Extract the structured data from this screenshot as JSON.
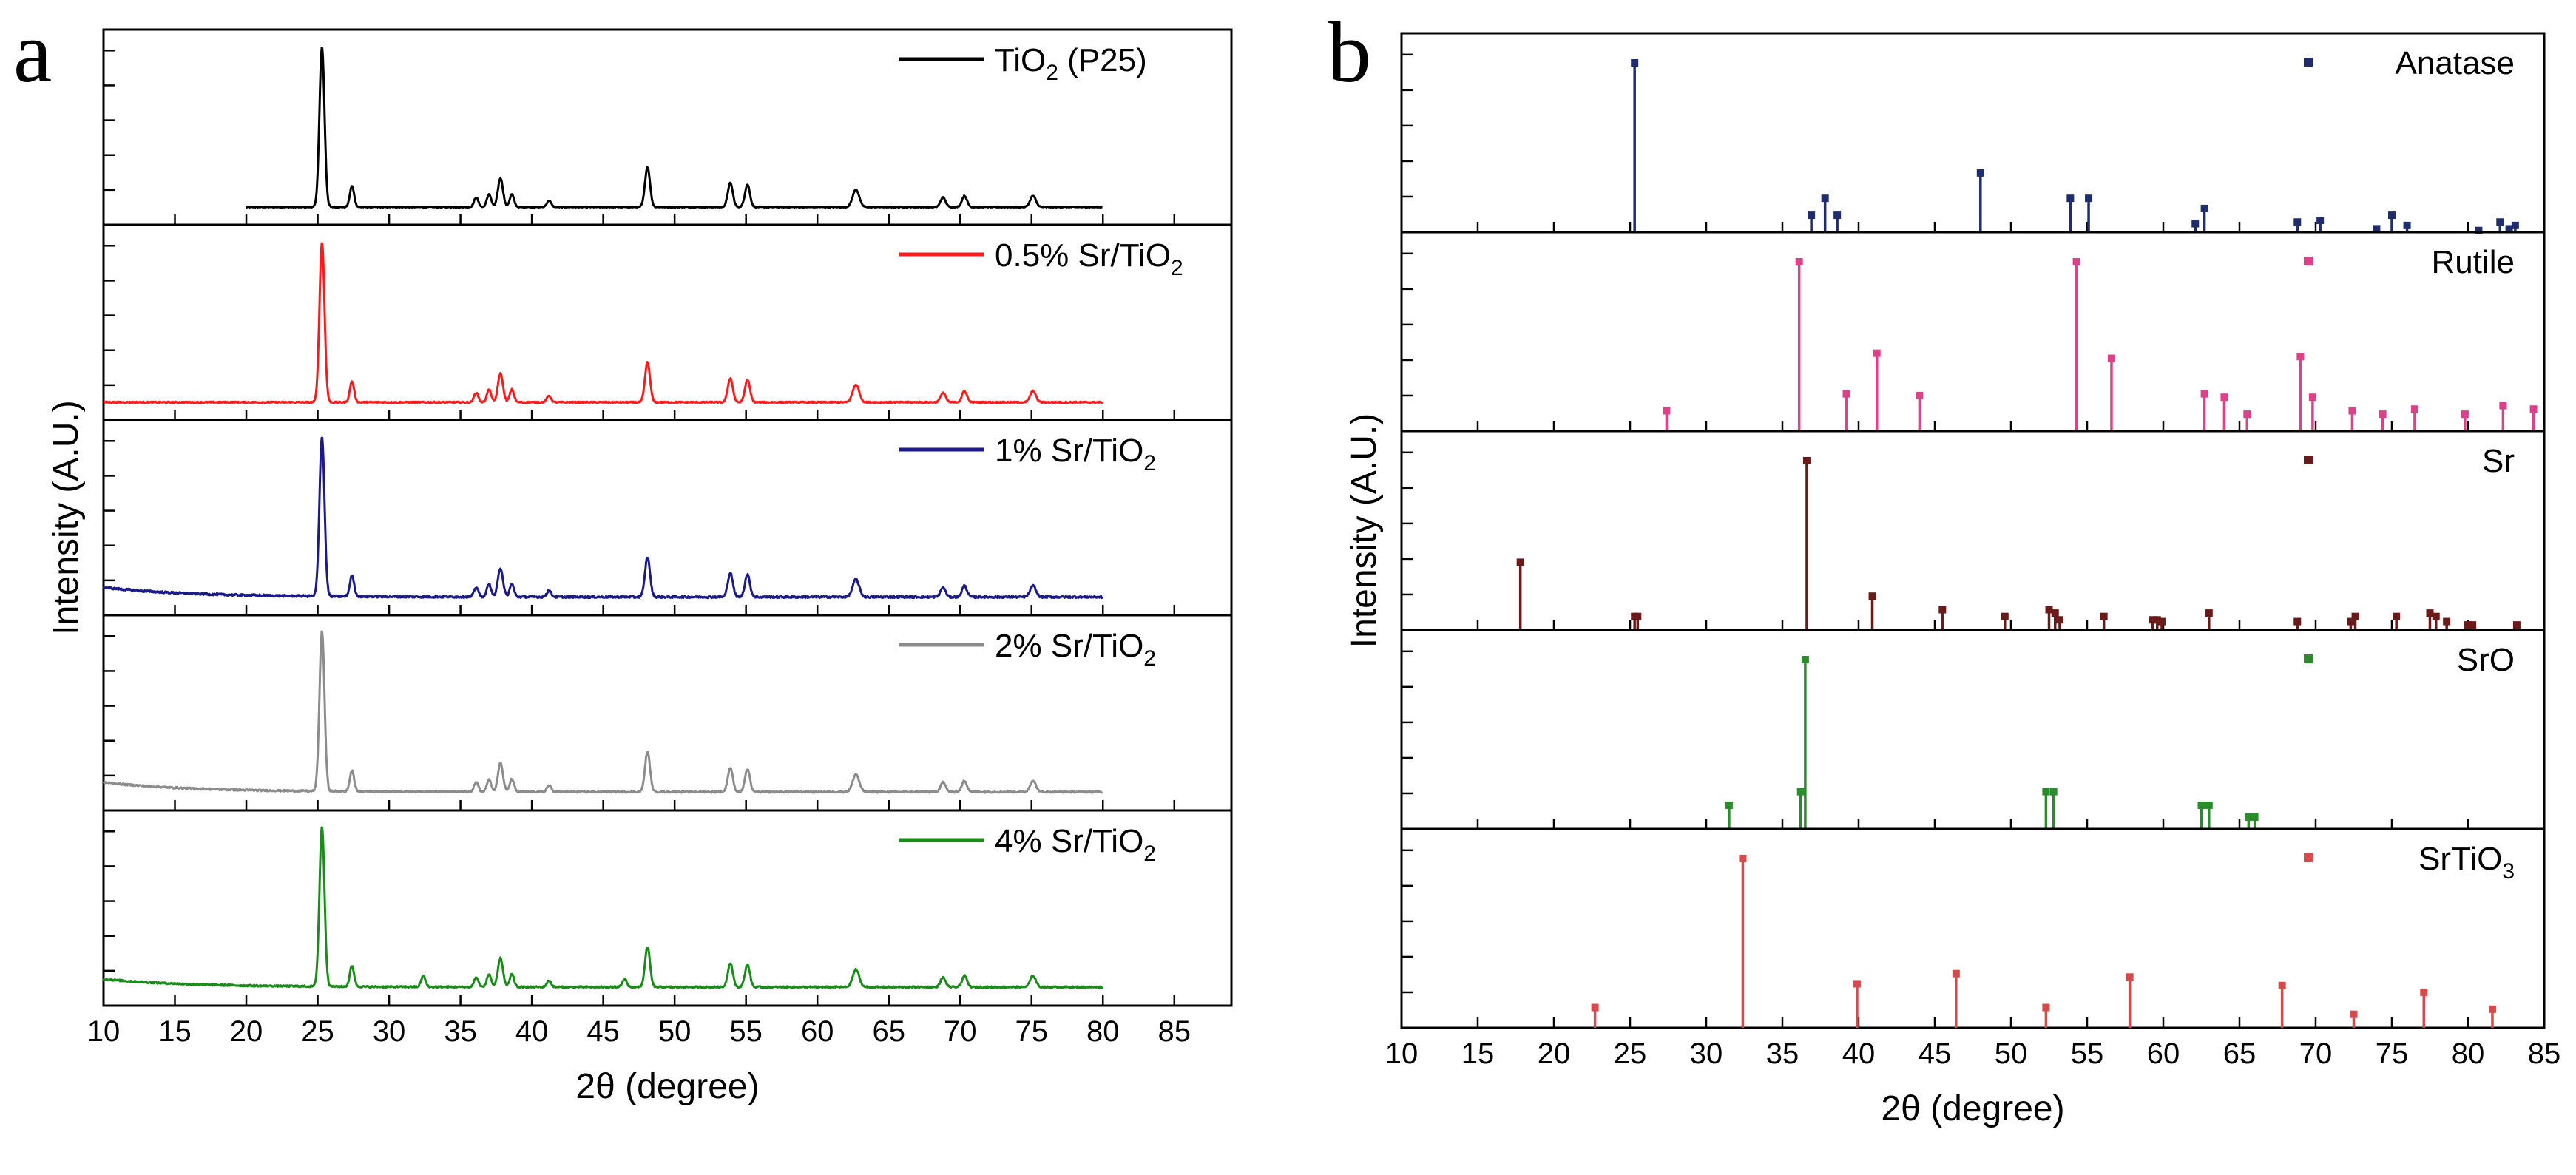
{
  "figure": {
    "panel_a": {
      "letter": "a",
      "xlabel": "2θ (degree)",
      "ylabel": "Intensity (A.U.)",
      "xlim": [
        10,
        89
      ],
      "xticks": [
        "10",
        "15",
        "20",
        "25",
        "30",
        "35",
        "40",
        "45",
        "50",
        "55",
        "60",
        "65",
        "70",
        "75",
        "80",
        "85"
      ]
    },
    "panel_b": {
      "letter": "b",
      "xlabel": "2θ (degree)",
      "ylabel": "Intensity (A.U.)",
      "xlim": [
        10,
        85
      ],
      "xticks": [
        "10",
        "15",
        "20",
        "25",
        "30",
        "35",
        "40",
        "45",
        "50",
        "55",
        "60",
        "65",
        "70",
        "75",
        "80",
        "85"
      ]
    }
  },
  "chart_data": [
    {
      "type": "line",
      "panel": "a",
      "title": "",
      "xlabel": "2θ (degree)",
      "ylabel": "Intensity (A.U.)",
      "xlim": [
        10,
        89
      ],
      "stacked_subpanels": 5,
      "peaks_common": [
        {
          "x": 25.3,
          "h": 1.0,
          "w": 0.35
        },
        {
          "x": 27.4,
          "h": 0.13,
          "w": 0.3
        },
        {
          "x": 36.1,
          "h": 0.06,
          "w": 0.3
        },
        {
          "x": 37.0,
          "h": 0.08,
          "w": 0.3
        },
        {
          "x": 37.8,
          "h": 0.18,
          "w": 0.35
        },
        {
          "x": 38.6,
          "h": 0.08,
          "w": 0.3
        },
        {
          "x": 41.2,
          "h": 0.04,
          "w": 0.3
        },
        {
          "x": 48.1,
          "h": 0.25,
          "w": 0.35
        },
        {
          "x": 53.9,
          "h": 0.15,
          "w": 0.35
        },
        {
          "x": 55.1,
          "h": 0.14,
          "w": 0.35
        },
        {
          "x": 62.7,
          "h": 0.11,
          "w": 0.45
        },
        {
          "x": 68.8,
          "h": 0.06,
          "w": 0.35
        },
        {
          "x": 70.3,
          "h": 0.07,
          "w": 0.35
        },
        {
          "x": 75.1,
          "h": 0.07,
          "w": 0.4
        }
      ],
      "series": [
        {
          "name": "TiO₂ (P25)",
          "color": "#000000",
          "x_start": 20,
          "x_end": 80,
          "baseline": 0.0,
          "slope": 0.0,
          "noise": 0.006
        },
        {
          "name": "0.5% Sr/TiO₂",
          "color": "#ff1a1a",
          "x_start": 10,
          "x_end": 80,
          "baseline": 0.0,
          "slope": 0.0,
          "noise": 0.008
        },
        {
          "name": "1% Sr/TiO₂",
          "color": "#1a1a8c",
          "x_start": 10,
          "x_end": 80,
          "baseline": 0.06,
          "slope": 0.06,
          "noise": 0.012
        },
        {
          "name": "2% Sr/TiO₂",
          "color": "#8c8c8c",
          "x_start": 10,
          "x_end": 80,
          "baseline": 0.06,
          "slope": 0.1,
          "noise": 0.01
        },
        {
          "name": "4% Sr/TiO₂",
          "color": "#1a8c1a",
          "x_start": 10,
          "x_end": 80,
          "baseline": 0.05,
          "slope": 0.1,
          "noise": 0.01,
          "extra_peaks": [
            {
              "x": 32.4,
              "h": 0.07,
              "w": 0.3
            },
            {
              "x": 46.5,
              "h": 0.05,
              "w": 0.3
            }
          ]
        }
      ],
      "legend": [
        {
          "main": "TiO",
          "sub": "2",
          "tail": " (P25)",
          "color": "#000000"
        },
        {
          "main": "0.5% Sr/TiO",
          "sub": "2",
          "tail": "",
          "color": "#ff1a1a"
        },
        {
          "main": "1% Sr/TiO",
          "sub": "2",
          "tail": "",
          "color": "#1a1a8c"
        },
        {
          "main": "2% Sr/TiO",
          "sub": "2",
          "tail": "",
          "color": "#8c8c8c"
        },
        {
          "main": "4% Sr/TiO",
          "sub": "2",
          "tail": "",
          "color": "#1a8c1a"
        }
      ]
    },
    {
      "type": "bar",
      "panel": "b",
      "title": "",
      "xlabel": "2θ (degree)",
      "ylabel": "Intensity (A.U.)",
      "xlim": [
        10,
        85
      ],
      "ylim": [
        0,
        100
      ],
      "series": [
        {
          "name": "Anatase",
          "main": "Anatase",
          "sub": "",
          "color": "#1f2d6e",
          "x": [
            25.3,
            36.9,
            37.8,
            38.6,
            48.0,
            53.9,
            55.1,
            62.1,
            62.7,
            68.8,
            70.3,
            74.0,
            75.0,
            76.0,
            80.7,
            82.1,
            82.7,
            83.1
          ],
          "y": [
            100,
            10,
            20,
            10,
            35,
            20,
            20,
            5,
            14,
            6,
            7,
            2,
            10,
            4,
            1,
            6,
            2,
            4
          ]
        },
        {
          "name": "Rutile",
          "main": "Rutile",
          "sub": "",
          "color": "#e0408a",
          "x": [
            27.4,
            36.1,
            39.2,
            41.2,
            44.0,
            54.3,
            56.6,
            62.7,
            64.0,
            65.5,
            69.0,
            69.8,
            72.4,
            74.4,
            76.5,
            79.8,
            82.3,
            84.3
          ],
          "y": [
            12,
            100,
            22,
            46,
            21,
            100,
            43,
            22,
            20,
            10,
            44,
            20,
            12,
            10,
            13,
            10,
            15,
            13
          ]
        },
        {
          "name": "Sr",
          "main": "Sr",
          "sub": "",
          "color": "#6b1a1a",
          "x": [
            17.8,
            25.3,
            25.5,
            36.6,
            40.9,
            45.5,
            49.6,
            52.5,
            52.9,
            53.2,
            56.1,
            59.3,
            59.6,
            59.9,
            63.0,
            68.8,
            72.3,
            72.6,
            75.3,
            77.5,
            77.9,
            78.6,
            80.0,
            80.3,
            83.2
          ],
          "y": [
            40,
            8,
            8,
            100,
            20,
            12,
            8,
            12,
            10,
            6,
            8,
            6,
            6,
            5,
            10,
            5,
            5,
            8,
            8,
            10,
            8,
            5,
            3,
            3,
            3
          ]
        },
        {
          "name": "SrO",
          "main": "SrO",
          "sub": "",
          "color": "#2a8c2a",
          "x": [
            31.5,
            36.2,
            36.5,
            52.3,
            52.8,
            62.5,
            63.0,
            65.6,
            66.0
          ],
          "y": [
            14,
            22,
            100,
            22,
            22,
            14,
            14,
            7,
            7
          ]
        },
        {
          "name": "SrTiO₃",
          "main": "SrTiO",
          "sub": "3",
          "color": "#d64a4a",
          "x": [
            22.7,
            32.4,
            39.9,
            46.4,
            52.3,
            57.8,
            67.8,
            72.5,
            77.1,
            81.6
          ],
          "y": [
            12,
            100,
            26,
            32,
            12,
            30,
            25,
            8,
            21,
            11
          ]
        }
      ]
    }
  ]
}
